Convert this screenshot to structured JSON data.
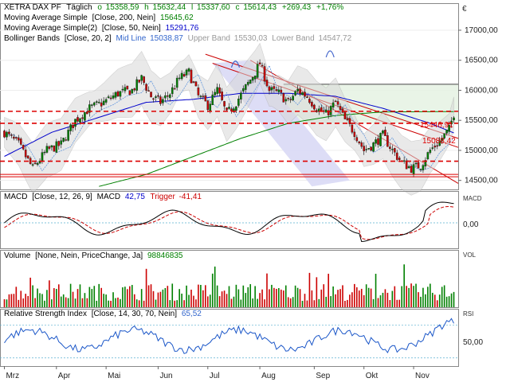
{
  "header": {
    "instrument": "XETRA DAX PF",
    "interval": "Täglich",
    "open_lbl": "o",
    "open": "15358,59",
    "high_lbl": "h",
    "high": "15632,44",
    "low_lbl": "l",
    "low": "15337,60",
    "close_lbl": "c",
    "close": "15614,43",
    "change": "+269,43",
    "change_pct": "+1,76%"
  },
  "indicators": {
    "sma200": {
      "name": "Moving Average Simple",
      "params": "[Close, 200, Nein]",
      "value": "15645,62",
      "color": "#008000"
    },
    "sma50": {
      "name": "Moving Average Simple(2)",
      "params": "[Close, 50, Nein]",
      "value": "15291,76",
      "color": "#0000cc"
    },
    "bb": {
      "name": "Bollinger Bands",
      "params": "[Close, 20, 2]",
      "mid_lbl": "Mid Line",
      "mid": "15038,87",
      "upper_lbl": "Upper Band",
      "upper": "15530,03",
      "lower_lbl": "Lower Band",
      "lower": "14547,72"
    }
  },
  "macd": {
    "name": "MACD",
    "params": "[Close, 12, 26, 9]",
    "title": "MACD",
    "value": "42,75",
    "trigger_lbl": "Trigger",
    "trigger": "-41,41",
    "side_label": "MACD",
    "tick": "0,00"
  },
  "volume": {
    "name": "Volume",
    "params": "[None, Nein, PriceChange, Ja]",
    "value": "98846835",
    "side_label": "VOL"
  },
  "rsi": {
    "name": "Relative Strength Index",
    "params": "[Close, 14, 30, 70, Nein]",
    "value": "65,52",
    "side_label": "RSI",
    "tick": "50,00"
  },
  "currency_symbol": "€",
  "price_labels": {
    "level1": "15446,91",
    "level2": "15088,42"
  },
  "colors": {
    "up": "#008000",
    "down": "#cc0000",
    "resistance": "#dd0000",
    "channel": "#cc0000",
    "bb_fill": "#d8d8d8"
  },
  "chart_data": {
    "type": "candlestick",
    "price_axis": {
      "ticks": [
        14500,
        15000,
        15500,
        16000,
        16500,
        17000
      ],
      "tick_labels": [
        "14500,00",
        "15000,00",
        "15500,00",
        "16000,00",
        "16500,00",
        "17000,00"
      ],
      "range": [
        14350,
        17450
      ]
    },
    "x_labels": [
      "Mrz",
      "Apr",
      "Mai",
      "Jun",
      "Jul",
      "Aug",
      "Sep",
      "Okt",
      "Nov"
    ],
    "horizontal_levels": [
      15650,
      15450,
      14820,
      14600
    ],
    "series": [
      {
        "name": "Close",
        "approx_path": [
          [
            0,
            15300
          ],
          [
            6,
            15100
          ],
          [
            12,
            14700
          ],
          [
            18,
            15000
          ],
          [
            24,
            15100
          ],
          [
            30,
            15500
          ],
          [
            36,
            15700
          ],
          [
            42,
            15800
          ],
          [
            48,
            15950
          ],
          [
            54,
            16000
          ],
          [
            58,
            16200
          ],
          [
            62,
            15900
          ],
          [
            66,
            15800
          ],
          [
            70,
            15950
          ],
          [
            74,
            16200
          ],
          [
            78,
            16300
          ],
          [
            82,
            15900
          ],
          [
            86,
            15750
          ],
          [
            90,
            16000
          ],
          [
            94,
            15600
          ],
          [
            98,
            15800
          ],
          [
            102,
            16050
          ],
          [
            106,
            16300
          ],
          [
            108,
            16450
          ],
          [
            112,
            16000
          ],
          [
            116,
            15950
          ],
          [
            120,
            15800
          ],
          [
            124,
            16000
          ],
          [
            128,
            15900
          ],
          [
            132,
            15700
          ],
          [
            136,
            15600
          ],
          [
            140,
            15800
          ],
          [
            144,
            15500
          ],
          [
            148,
            15300
          ],
          [
            152,
            15000
          ],
          [
            156,
            15100
          ],
          [
            160,
            15250
          ],
          [
            164,
            15000
          ],
          [
            168,
            14800
          ],
          [
            172,
            14700
          ],
          [
            176,
            14750
          ],
          [
            180,
            15000
          ],
          [
            184,
            15150
          ],
          [
            188,
            15350
          ],
          [
            190,
            15614
          ]
        ]
      },
      {
        "name": "SMA 200",
        "approx_path": [
          [
            40,
            14400
          ],
          [
            60,
            14600
          ],
          [
            80,
            14900
          ],
          [
            100,
            15200
          ],
          [
            120,
            15450
          ],
          [
            140,
            15580
          ],
          [
            160,
            15640
          ],
          [
            190,
            15645
          ]
        ]
      },
      {
        "name": "SMA 50",
        "approx_path": [
          [
            0,
            14900
          ],
          [
            20,
            15300
          ],
          [
            40,
            15550
          ],
          [
            60,
            15800
          ],
          [
            80,
            15850
          ],
          [
            100,
            15950
          ],
          [
            120,
            15950
          ],
          [
            140,
            15900
          ],
          [
            160,
            15700
          ],
          [
            180,
            15450
          ],
          [
            190,
            15290
          ]
        ]
      }
    ]
  }
}
